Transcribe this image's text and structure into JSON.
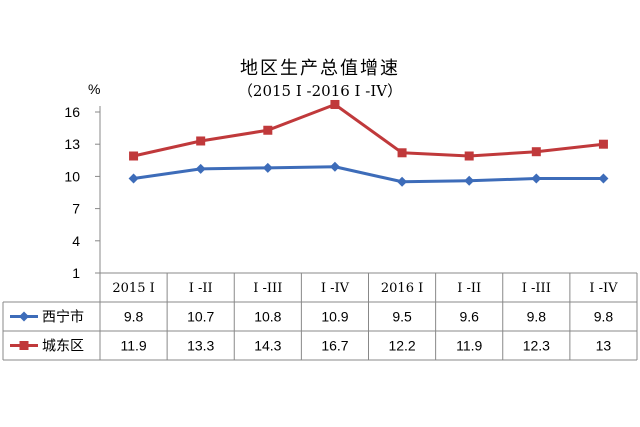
{
  "chart_data": {
    "type": "line",
    "title": "地区生产总值增速",
    "subtitle": "（2015 I -2016 I -IV）",
    "ylabel": "%",
    "ylim": [
      1,
      16
    ],
    "yticks": [
      "1",
      "4",
      "7",
      "10",
      "13",
      "16"
    ],
    "categories": [
      "2015 I",
      "I -II",
      "I -III",
      "I -IV",
      "2016 I",
      "I -II",
      "I -III",
      "I -IV"
    ],
    "series": [
      {
        "name": "西宁市",
        "color": "#3D6CB9",
        "marker": "diamond",
        "values": [
          9.8,
          10.7,
          10.8,
          10.9,
          9.5,
          9.6,
          9.8,
          9.8
        ],
        "labels": [
          "9.8",
          "10.7",
          "10.8",
          "10.9",
          "9.5",
          "9.6",
          "9.8",
          "9.8"
        ]
      },
      {
        "name": "城东区",
        "color": "#C0393B",
        "marker": "square",
        "values": [
          11.9,
          13.3,
          14.3,
          16.7,
          12.2,
          11.9,
          12.3,
          13
        ],
        "labels": [
          "11.9",
          "13.3",
          "14.3",
          "16.7",
          "12.2",
          "11.9",
          "12.3",
          "13"
        ]
      }
    ],
    "grid": false,
    "legend": "data-table"
  }
}
